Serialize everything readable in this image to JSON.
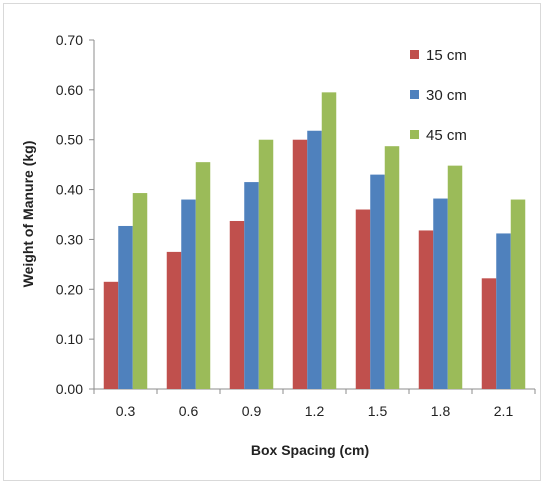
{
  "chart_data": {
    "type": "bar",
    "title": "",
    "xlabel": "Box Spacing (cm)",
    "ylabel": "Weight of Manure (kg)",
    "ylim": [
      0,
      0.7
    ],
    "yticks": [
      "0.00",
      "0.10",
      "0.20",
      "0.30",
      "0.40",
      "0.50",
      "0.60",
      "0.70"
    ],
    "categories": [
      "0.3",
      "0.6",
      "0.9",
      "1.2",
      "1.5",
      "1.8",
      "2.1"
    ],
    "grid": false,
    "legend_position": "top-right",
    "series": [
      {
        "name": "15 cm",
        "color": "#c0504d",
        "values": [
          0.215,
          0.275,
          0.337,
          0.5,
          0.36,
          0.318,
          0.222
        ]
      },
      {
        "name": "30 cm",
        "color": "#4f81bd",
        "values": [
          0.327,
          0.38,
          0.415,
          0.518,
          0.43,
          0.382,
          0.312
        ]
      },
      {
        "name": "45 cm",
        "color": "#9bbb59",
        "values": [
          0.393,
          0.455,
          0.5,
          0.595,
          0.487,
          0.448,
          0.38
        ]
      }
    ]
  }
}
